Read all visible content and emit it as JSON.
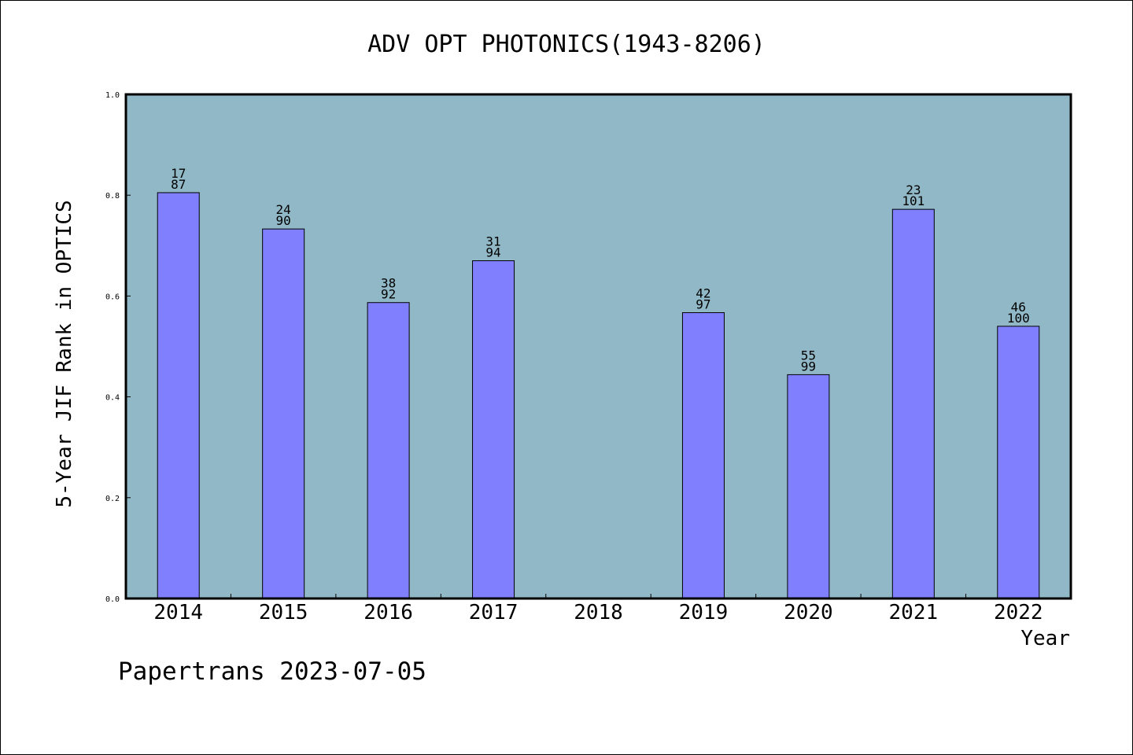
{
  "chart_data": {
    "type": "bar",
    "title": "ADV OPT PHOTONICS(1943-8206)",
    "xlabel": "Year",
    "ylabel": "5-Year JIF Rank in OPTICS",
    "ylim": [
      0,
      1.0
    ],
    "yticks": [
      "0.0",
      "0.2",
      "0.4",
      "0.6",
      "0.8",
      "1.0"
    ],
    "categories": [
      "2014",
      "2015",
      "2016",
      "2017",
      "2018",
      "2019",
      "2020",
      "2021",
      "2022"
    ],
    "values": [
      0.805,
      0.733,
      0.587,
      0.67,
      null,
      0.567,
      0.444,
      0.772,
      0.54
    ],
    "rank": [
      "17",
      "24",
      "38",
      "31",
      "",
      "42",
      "55",
      "23",
      "46"
    ],
    "total": [
      "87",
      "90",
      "92",
      "94",
      "",
      "97",
      "99",
      "101",
      "100"
    ],
    "grid": false,
    "colors": {
      "plot_background": "#90b8c6",
      "bar_fill": "#8080ff",
      "bar_stroke": "#000000"
    }
  },
  "footer": "Papertrans 2023-07-05"
}
